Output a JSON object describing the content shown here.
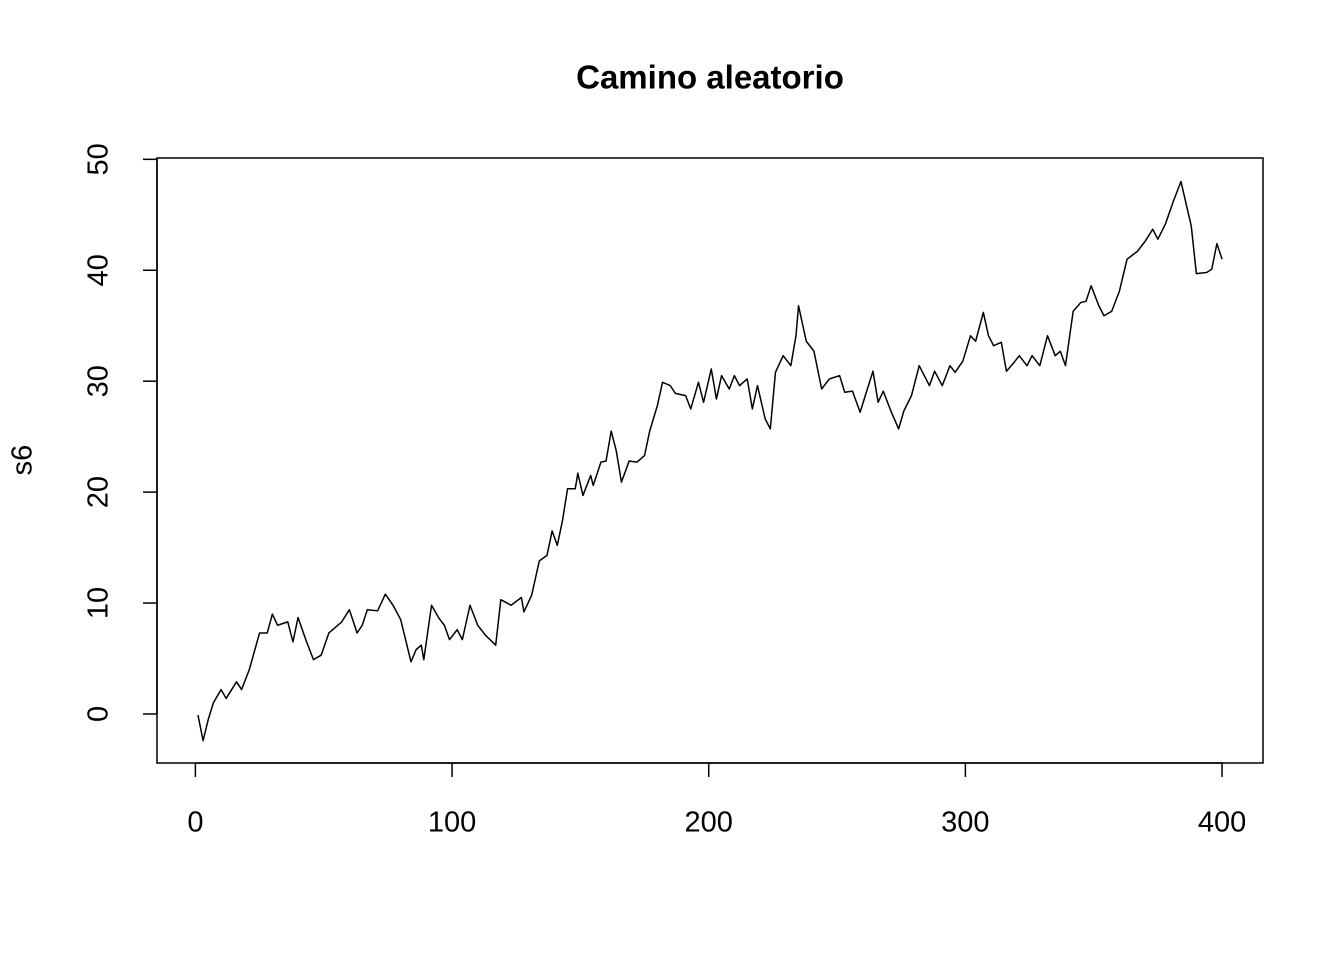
{
  "chart_data": {
    "type": "line",
    "title": "Camino aleatorio",
    "y_label": "s6",
    "x": [
      1,
      3,
      5,
      7,
      10,
      12,
      16,
      18,
      21,
      25,
      28,
      30,
      32,
      36,
      38,
      40,
      43,
      46,
      49,
      52,
      54,
      57,
      60,
      63,
      65,
      67,
      71,
      74,
      77,
      80,
      84,
      86,
      88,
      89,
      92,
      95,
      97,
      99,
      102,
      104,
      107,
      110,
      113,
      117,
      119,
      123,
      127,
      128,
      131,
      134,
      137,
      139,
      141,
      143,
      145,
      148,
      149,
      151,
      154,
      155,
      158,
      160,
      162,
      164,
      166,
      169,
      172,
      175,
      177,
      180,
      182,
      185,
      187,
      191,
      193,
      196,
      198,
      201,
      203,
      205,
      208,
      210,
      212,
      215,
      217,
      219,
      222,
      224,
      226,
      229,
      232,
      234,
      235,
      238,
      241,
      244,
      247,
      251,
      253,
      256,
      259,
      261,
      264,
      266,
      268,
      271,
      274,
      276,
      279,
      282,
      286,
      288,
      291,
      294,
      296,
      299,
      302,
      304,
      307,
      309,
      311,
      314,
      316,
      319,
      321,
      324,
      326,
      329,
      332,
      335,
      337,
      339,
      342,
      345,
      347,
      349,
      352,
      354,
      357,
      360,
      363,
      367,
      370,
      373,
      375,
      378,
      381,
      384,
      388,
      390,
      394,
      396,
      398,
      400
    ],
    "values": [
      -0.1,
      -2.4,
      -0.5,
      1,
      2.2,
      1.4,
      2.9,
      2.2,
      4,
      7.3,
      7.3,
      9,
      8,
      8.3,
      6.5,
      8.7,
      6.7,
      4.9,
      5.3,
      7.3,
      7.7,
      8.3,
      9.4,
      7.3,
      8,
      9.4,
      9.3,
      10.8,
      9.8,
      8.5,
      4.7,
      5.8,
      6.2,
      4.9,
      9.8,
      8.6,
      8,
      6.7,
      7.6,
      6.7,
      9.8,
      8,
      7.1,
      6.2,
      10.3,
      9.8,
      10.5,
      9.2,
      10.7,
      13.8,
      14.3,
      16.5,
      15.2,
      17.4,
      20.3,
      20.3,
      21.7,
      19.7,
      21.5,
      20.6,
      22.7,
      22.8,
      25.5,
      23.7,
      20.9,
      22.8,
      22.7,
      23.3,
      25.5,
      27.8,
      29.9,
      29.6,
      28.9,
      28.7,
      27.5,
      29.9,
      28.1,
      31.1,
      28.4,
      30.5,
      29.3,
      30.5,
      29.6,
      30.2,
      27.5,
      29.6,
      26.6,
      25.7,
      30.8,
      32.3,
      31.4,
      34.1,
      36.8,
      33.6,
      32.7,
      29.3,
      30.2,
      30.5,
      29,
      29.1,
      27.2,
      28.7,
      30.9,
      28.1,
      29.1,
      27.3,
      25.7,
      27.3,
      28.7,
      31.4,
      29.6,
      30.9,
      29.6,
      31.4,
      30.8,
      31.8,
      34.1,
      33.6,
      36.2,
      34.1,
      33.2,
      33.5,
      30.9,
      31.7,
      32.3,
      31.4,
      32.3,
      31.4,
      34.1,
      32.3,
      32.7,
      31.4,
      36.3,
      37.1,
      37.2,
      38.6,
      36.8,
      35.9,
      36.3,
      38.1,
      41,
      41.7,
      42.6,
      43.7,
      42.8,
      44.2,
      46.2,
      48,
      44,
      39.7,
      39.8,
      40.1,
      42.4,
      41
    ],
    "color": "#000000",
    "xlim": [
      -14.96,
      415.96
    ],
    "xticks": [
      0,
      100,
      200,
      300,
      400
    ],
    "ylim": [
      -4.42,
      50.12
    ],
    "yticks": [
      0,
      10,
      20,
      30,
      40,
      50
    ]
  }
}
